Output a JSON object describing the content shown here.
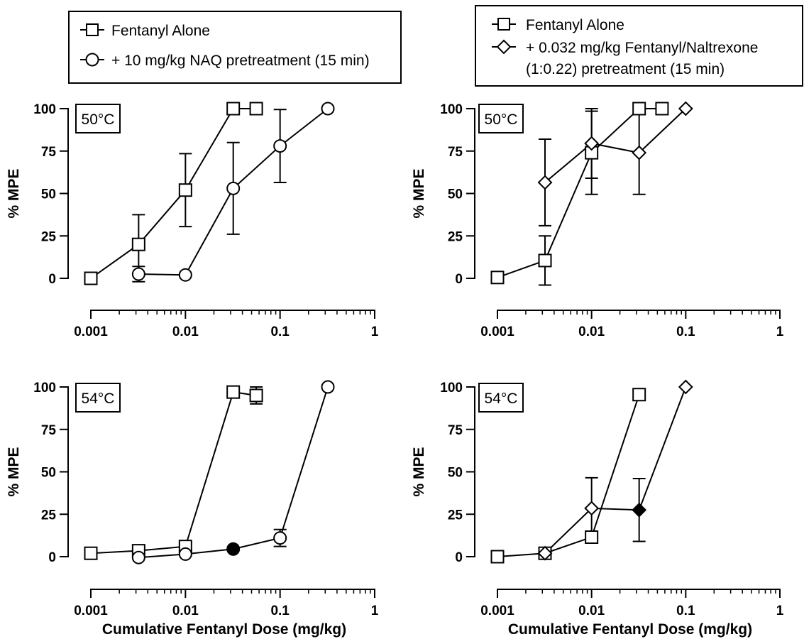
{
  "legends": [
    {
      "entries": [
        {
          "marker": "square",
          "label": "Fentanyl Alone"
        },
        {
          "marker": "circle",
          "label": "+ 10 mg/kg NAQ pretreatment (15 min)"
        }
      ]
    },
    {
      "entries": [
        {
          "marker": "square",
          "label": "Fentanyl Alone"
        },
        {
          "marker": "diamond",
          "label": "+ 0.032 mg/kg Fentanyl/Naltrexone",
          "label_line2": "(1:0.22) pretreatment (15 min)"
        }
      ]
    }
  ],
  "chart_data": [
    {
      "type": "scatter",
      "panel": "top-left",
      "temperature_label": "50°C",
      "ylabel": "% MPE",
      "xlabel": "",
      "xscale": "log",
      "xlim": [
        0.001,
        1
      ],
      "ylim": [
        0,
        100
      ],
      "xticks": [
        "0.001",
        "0.01",
        "0.1",
        "1"
      ],
      "yticks": [
        "0",
        "25",
        "50",
        "75",
        "100"
      ],
      "series": [
        {
          "name": "Fentanyl Alone",
          "marker": "square",
          "x": [
            0.001,
            0.0032,
            0.01,
            0.032,
            0.056
          ],
          "y": [
            0,
            20,
            52,
            100,
            100
          ],
          "err": [
            0,
            17.5,
            21.5,
            0,
            0
          ],
          "filled": [
            false,
            false,
            false,
            false,
            false
          ]
        },
        {
          "name": "+ 10 mg/kg NAQ pretreatment (15 min)",
          "marker": "circle",
          "x": [
            0.0032,
            0.01,
            0.032,
            0.1,
            0.32
          ],
          "y": [
            2.5,
            2,
            53,
            78,
            100
          ],
          "err": [
            4.5,
            0,
            27,
            21.5,
            0
          ],
          "filled": [
            false,
            false,
            false,
            false,
            false
          ]
        }
      ]
    },
    {
      "type": "scatter",
      "panel": "top-right",
      "temperature_label": "50°C",
      "ylabel": "% MPE",
      "xlabel": "",
      "xscale": "log",
      "xlim": [
        0.001,
        1
      ],
      "ylim": [
        0,
        100
      ],
      "xticks": [
        "0.001",
        "0.01",
        "0.1",
        "1"
      ],
      "yticks": [
        "0",
        "25",
        "50",
        "75",
        "100"
      ],
      "series": [
        {
          "name": "Fentanyl Alone",
          "marker": "square",
          "x": [
            0.001,
            0.0032,
            0.01,
            0.032,
            0.056
          ],
          "y": [
            0.5,
            10.5,
            74,
            100,
            100
          ],
          "err": [
            0,
            14.5,
            24.5,
            0,
            0
          ],
          "filled": [
            false,
            false,
            false,
            false,
            false
          ]
        },
        {
          "name": "+ 0.032 mg/kg Fentanyl/Naltrexone (1:0.22) pretreatment (15 min)",
          "marker": "diamond",
          "x": [
            0.0032,
            0.01,
            0.032,
            0.1
          ],
          "y": [
            56.5,
            79.5,
            74,
            100
          ],
          "err": [
            25.5,
            20.5,
            24.5,
            0
          ],
          "filled": [
            false,
            false,
            false,
            false
          ]
        }
      ]
    },
    {
      "type": "scatter",
      "panel": "bottom-left",
      "temperature_label": "54°C",
      "ylabel": "% MPE",
      "xlabel": "Cumulative Fentanyl Dose (mg/kg)",
      "xscale": "log",
      "xlim": [
        0.001,
        1
      ],
      "ylim": [
        0,
        100
      ],
      "xticks": [
        "0.001",
        "0.01",
        "0.1",
        "1"
      ],
      "yticks": [
        "0",
        "25",
        "50",
        "75",
        "100"
      ],
      "series": [
        {
          "name": "Fentanyl Alone",
          "marker": "square",
          "x": [
            0.001,
            0.0032,
            0.01,
            0.032,
            0.056
          ],
          "y": [
            2,
            3.5,
            6,
            97,
            95
          ],
          "err": [
            0,
            0,
            0,
            0,
            5
          ],
          "filled": [
            false,
            false,
            false,
            false,
            false
          ]
        },
        {
          "name": "+ 10 mg/kg NAQ pretreatment (15 min)",
          "marker": "circle",
          "x": [
            0.0032,
            0.01,
            0.032,
            0.1,
            0.32
          ],
          "y": [
            -0.5,
            1.5,
            4.5,
            11,
            100
          ],
          "err": [
            0,
            0,
            0,
            5,
            0
          ],
          "filled": [
            false,
            false,
            true,
            false,
            false
          ]
        }
      ]
    },
    {
      "type": "scatter",
      "panel": "bottom-right",
      "temperature_label": "54°C",
      "ylabel": "% MPE",
      "xlabel": "Cumulative Fentanyl Dose (mg/kg)",
      "xscale": "log",
      "xlim": [
        0.001,
        1
      ],
      "ylim": [
        0,
        100
      ],
      "xticks": [
        "0.001",
        "0.01",
        "0.1",
        "1"
      ],
      "yticks": [
        "0",
        "25",
        "50",
        "75",
        "100"
      ],
      "series": [
        {
          "name": "Fentanyl Alone",
          "marker": "square",
          "x": [
            0.001,
            0.0032,
            0.01,
            0.032
          ],
          "y": [
            0,
            2,
            11.5,
            95.5
          ],
          "err": [
            0,
            0,
            0,
            2
          ],
          "filled": [
            false,
            false,
            false,
            false
          ]
        },
        {
          "name": "+ 0.032 mg/kg Fentanyl/Naltrexone (1:0.22) pretreatment (15 min)",
          "marker": "diamond",
          "x": [
            0.0032,
            0.01,
            0.032,
            0.1
          ],
          "y": [
            2,
            28.5,
            27.5,
            100
          ],
          "err": [
            0,
            18,
            18.5,
            0
          ],
          "filled": [
            false,
            false,
            true,
            false
          ]
        }
      ]
    }
  ]
}
